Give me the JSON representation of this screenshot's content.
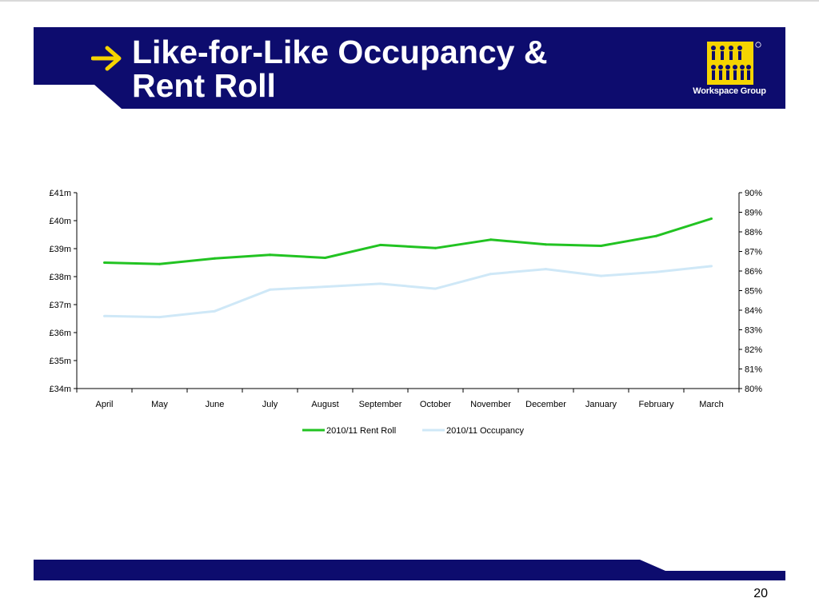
{
  "slide": {
    "title_line1": "Like-for-Like Occupancy &",
    "title_line2": "Rent Roll",
    "logo_text": "Workspace Group",
    "page_number": "20",
    "colors": {
      "banner": "#0d0c6e",
      "arrow": "#f5d400",
      "rent_roll": "#22c322",
      "occupancy": "#cfe8f7"
    }
  },
  "chart_data": {
    "type": "line",
    "categories": [
      "April",
      "May",
      "June",
      "July",
      "August",
      "September",
      "October",
      "November",
      "December",
      "January",
      "February",
      "March"
    ],
    "series": [
      {
        "name": "2010/11 Rent Roll",
        "axis": "left",
        "values": [
          38.5,
          38.45,
          38.65,
          38.78,
          38.67,
          39.13,
          39.02,
          39.32,
          39.15,
          39.1,
          39.45,
          40.07
        ]
      },
      {
        "name": "2010/11 Occupancy",
        "axis": "right",
        "values": [
          83.7,
          83.65,
          83.95,
          85.05,
          85.2,
          85.35,
          85.1,
          85.85,
          86.1,
          85.75,
          85.95,
          86.25
        ]
      }
    ],
    "y_left": {
      "min": 34,
      "max": 41,
      "step": 1,
      "tick_labels": [
        "£34m",
        "£35m",
        "£36m",
        "£37m",
        "£38m",
        "£39m",
        "£40m",
        "£41m"
      ]
    },
    "y_right": {
      "min": 80,
      "max": 90,
      "step": 1,
      "tick_labels": [
        "80%",
        "81%",
        "82%",
        "83%",
        "84%",
        "85%",
        "86%",
        "87%",
        "88%",
        "89%",
        "90%"
      ]
    },
    "legend_position": "bottom",
    "grid": false
  }
}
